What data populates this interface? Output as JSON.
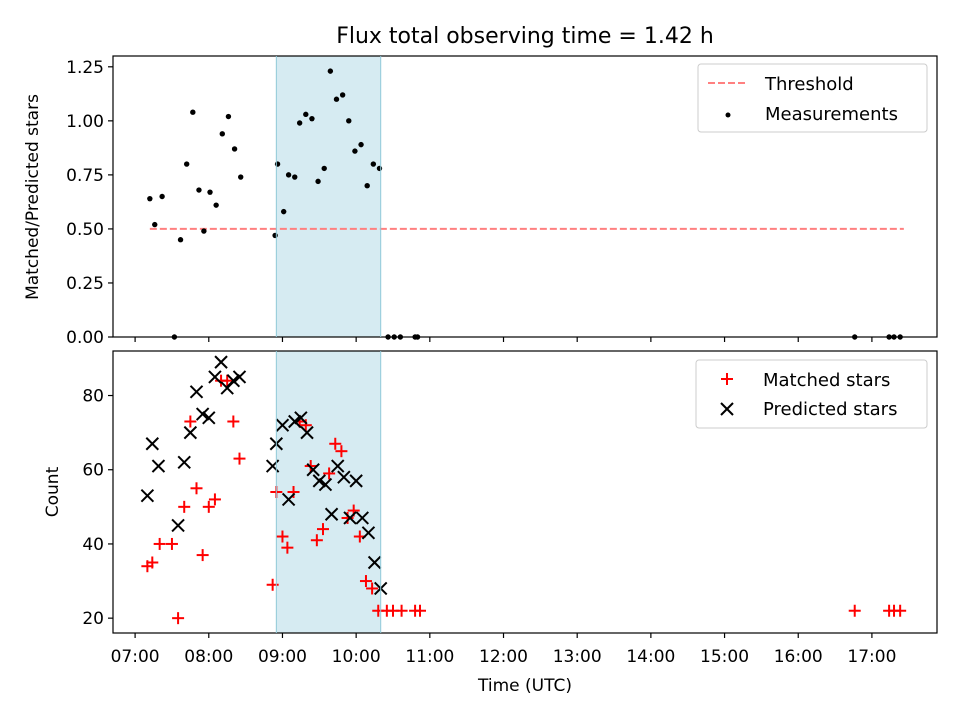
{
  "title": "Flux total observing time = 1.42 h",
  "chart_data": [
    {
      "type": "scatter",
      "panel": "top",
      "ylabel": "Matched/Predicted stars",
      "xlabel": "",
      "ylim": [
        0,
        1.3
      ],
      "yticks": [
        0.0,
        0.25,
        0.5,
        0.75,
        1.0,
        1.25
      ],
      "ytick_labels": [
        "0.00",
        "0.25",
        "0.50",
        "0.75",
        "1.00",
        "1.25"
      ],
      "xlim": [
        "06:42",
        "17:53"
      ],
      "highlight_span": [
        "08:55",
        "10:20"
      ],
      "legend_position": "top-right",
      "series": [
        {
          "name": "Threshold",
          "kind": "dashed-line",
          "color": "#ff8080",
          "x": [
            "07:12",
            "17:26"
          ],
          "y": [
            0.5,
            0.5
          ]
        },
        {
          "name": "Measurements",
          "kind": "dots",
          "color": "#000000",
          "points": [
            [
              "07:12",
              0.64
            ],
            [
              "07:16",
              0.52
            ],
            [
              "07:22",
              0.65
            ],
            [
              "07:32",
              0.0
            ],
            [
              "07:37",
              0.45
            ],
            [
              "07:42",
              0.8
            ],
            [
              "07:47",
              1.04
            ],
            [
              "07:52",
              0.68
            ],
            [
              "07:56",
              0.49
            ],
            [
              "08:01",
              0.67
            ],
            [
              "08:06",
              0.61
            ],
            [
              "08:11",
              0.94
            ],
            [
              "08:16",
              1.02
            ],
            [
              "08:21",
              0.87
            ],
            [
              "08:26",
              0.74
            ],
            [
              "08:54",
              0.47
            ],
            [
              "08:56",
              0.8
            ],
            [
              "09:01",
              0.58
            ],
            [
              "09:05",
              0.75
            ],
            [
              "09:10",
              0.74
            ],
            [
              "09:14",
              0.99
            ],
            [
              "09:19",
              1.03
            ],
            [
              "09:24",
              1.01
            ],
            [
              "09:29",
              0.72
            ],
            [
              "09:34",
              0.78
            ],
            [
              "09:39",
              1.23
            ],
            [
              "09:44",
              1.1
            ],
            [
              "09:49",
              1.12
            ],
            [
              "09:54",
              1.0
            ],
            [
              "09:59",
              0.86
            ],
            [
              "10:04",
              0.89
            ],
            [
              "10:09",
              0.7
            ],
            [
              "10:14",
              0.8
            ],
            [
              "10:19",
              0.78
            ],
            [
              "10:26",
              0.0
            ],
            [
              "10:31",
              0.0
            ],
            [
              "10:36",
              0.0
            ],
            [
              "10:48",
              0.0
            ],
            [
              "10:50",
              0.0
            ],
            [
              "16:46",
              0.0
            ],
            [
              "17:14",
              0.0
            ],
            [
              "17:18",
              0.0
            ],
            [
              "17:23",
              0.0
            ]
          ]
        }
      ]
    },
    {
      "type": "scatter",
      "panel": "bottom",
      "ylabel": "Count",
      "xlabel": "Time (UTC)",
      "ylim": [
        16,
        92
      ],
      "yticks": [
        20,
        40,
        60,
        80
      ],
      "ytick_labels": [
        "20",
        "40",
        "60",
        "80"
      ],
      "xlim": [
        "06:42",
        "17:53"
      ],
      "xticks": [
        "07:00",
        "08:00",
        "09:00",
        "10:00",
        "11:00",
        "12:00",
        "13:00",
        "14:00",
        "15:00",
        "16:00",
        "17:00"
      ],
      "xtick_labels": [
        "07:00",
        "08:00",
        "09:00",
        "10:00",
        "11:00",
        "12:00",
        "13:00",
        "14:00",
        "15:00",
        "16:00",
        "17:00"
      ],
      "highlight_span": [
        "08:55",
        "10:20"
      ],
      "legend_position": "top-right",
      "series": [
        {
          "name": "Matched stars",
          "marker": "plus",
          "color": "#ff0000",
          "points": [
            [
              "07:10",
              34
            ],
            [
              "07:14",
              35
            ],
            [
              "07:20",
              40
            ],
            [
              "07:30",
              40
            ],
            [
              "07:35",
              20
            ],
            [
              "07:40",
              50
            ],
            [
              "07:45",
              73
            ],
            [
              "07:50",
              55
            ],
            [
              "07:55",
              37
            ],
            [
              "08:00",
              50
            ],
            [
              "08:05",
              52
            ],
            [
              "08:10",
              84
            ],
            [
              "08:15",
              84
            ],
            [
              "08:20",
              73
            ],
            [
              "08:25",
              63
            ],
            [
              "08:52",
              29
            ],
            [
              "08:55",
              54
            ],
            [
              "09:00",
              42
            ],
            [
              "09:04",
              39
            ],
            [
              "09:09",
              54
            ],
            [
              "09:14",
              73
            ],
            [
              "09:19",
              72
            ],
            [
              "09:23",
              61
            ],
            [
              "09:28",
              41
            ],
            [
              "09:33",
              44
            ],
            [
              "09:38",
              59
            ],
            [
              "09:43",
              67
            ],
            [
              "09:48",
              65
            ],
            [
              "09:53",
              47
            ],
            [
              "09:58",
              49
            ],
            [
              "10:03",
              42
            ],
            [
              "10:08",
              30
            ],
            [
              "10:13",
              28
            ],
            [
              "10:18",
              22
            ],
            [
              "10:25",
              22
            ],
            [
              "10:30",
              22
            ],
            [
              "10:37",
              22
            ],
            [
              "10:48",
              22
            ],
            [
              "10:52",
              22
            ],
            [
              "16:46",
              22
            ],
            [
              "17:14",
              22
            ],
            [
              "17:18",
              22
            ],
            [
              "17:23",
              22
            ]
          ]
        },
        {
          "name": "Predicted stars",
          "marker": "x",
          "color": "#000000",
          "points": [
            [
              "07:10",
              53
            ],
            [
              "07:14",
              67
            ],
            [
              "07:19",
              61
            ],
            [
              "07:35",
              45
            ],
            [
              "07:40",
              62
            ],
            [
              "07:45",
              70
            ],
            [
              "07:50",
              81
            ],
            [
              "07:55",
              75
            ],
            [
              "08:00",
              74
            ],
            [
              "08:05",
              85
            ],
            [
              "08:10",
              89
            ],
            [
              "08:15",
              82
            ],
            [
              "08:20",
              84
            ],
            [
              "08:25",
              85
            ],
            [
              "08:52",
              61
            ],
            [
              "08:55",
              67
            ],
            [
              "09:00",
              72
            ],
            [
              "09:05",
              52
            ],
            [
              "09:10",
              73
            ],
            [
              "09:15",
              74
            ],
            [
              "09:20",
              70
            ],
            [
              "09:25",
              60
            ],
            [
              "09:30",
              57
            ],
            [
              "09:35",
              56
            ],
            [
              "09:40",
              48
            ],
            [
              "09:45",
              61
            ],
            [
              "09:50",
              58
            ],
            [
              "09:55",
              47
            ],
            [
              "10:00",
              57
            ],
            [
              "10:05",
              47
            ],
            [
              "10:10",
              43
            ],
            [
              "10:15",
              35
            ],
            [
              "10:20",
              28
            ]
          ]
        }
      ]
    }
  ]
}
